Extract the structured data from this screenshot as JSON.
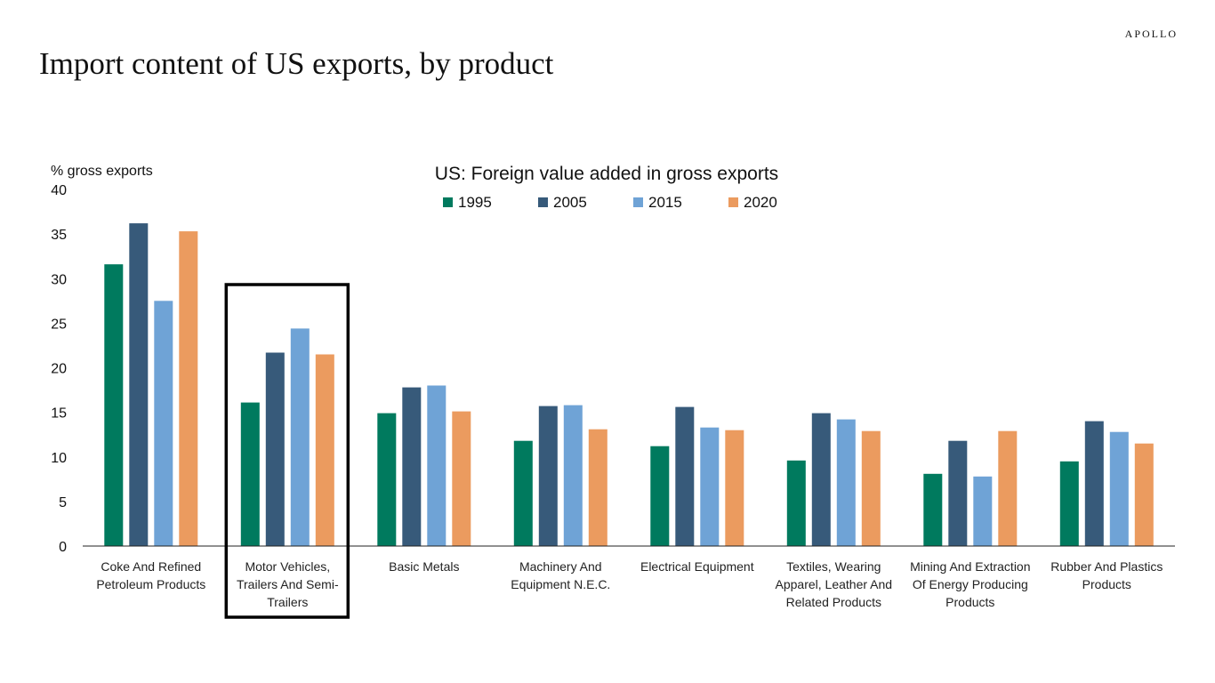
{
  "brand": "APOLLO",
  "page_title": "Import content of US exports, by product",
  "colors": {
    "1995": "#007a5e",
    "2005": "#375a7a",
    "2015": "#6fa3d6",
    "2020": "#eb9b5f",
    "highlight": "#000000"
  },
  "chart_data": {
    "type": "bar",
    "title": "US: Foreign value added in gross exports",
    "ylabel": "% gross exports",
    "xlabel": "",
    "ylim": [
      0,
      40
    ],
    "yticks": [
      0,
      5,
      10,
      15,
      20,
      25,
      30,
      35,
      40
    ],
    "legend_position": "top-center",
    "grid": false,
    "categories": [
      [
        "Coke And Refined",
        "Petroleum Products"
      ],
      [
        "Motor Vehicles,",
        "Trailers And Semi-",
        "Trailers"
      ],
      [
        "Basic Metals"
      ],
      [
        "Machinery And",
        "Equipment N.E.C."
      ],
      [
        "Electrical Equipment"
      ],
      [
        "Textiles, Wearing",
        "Apparel, Leather And",
        "Related Products"
      ],
      [
        "Mining And Extraction",
        "Of Energy Producing",
        "Products"
      ],
      [
        "Rubber And Plastics",
        "Products"
      ]
    ],
    "highlighted_category_index": 1,
    "series": [
      {
        "name": "1995",
        "values": [
          31.6,
          16.1,
          14.9,
          11.8,
          11.2,
          9.6,
          8.1,
          9.5
        ]
      },
      {
        "name": "2005",
        "values": [
          36.2,
          21.7,
          17.8,
          15.7,
          15.6,
          14.9,
          11.8,
          14.0
        ]
      },
      {
        "name": "2015",
        "values": [
          27.5,
          24.4,
          18.0,
          15.8,
          13.3,
          14.2,
          7.8,
          12.8
        ]
      },
      {
        "name": "2020",
        "values": [
          35.3,
          21.5,
          15.1,
          13.1,
          13.0,
          12.9,
          12.9,
          11.5
        ]
      }
    ]
  }
}
